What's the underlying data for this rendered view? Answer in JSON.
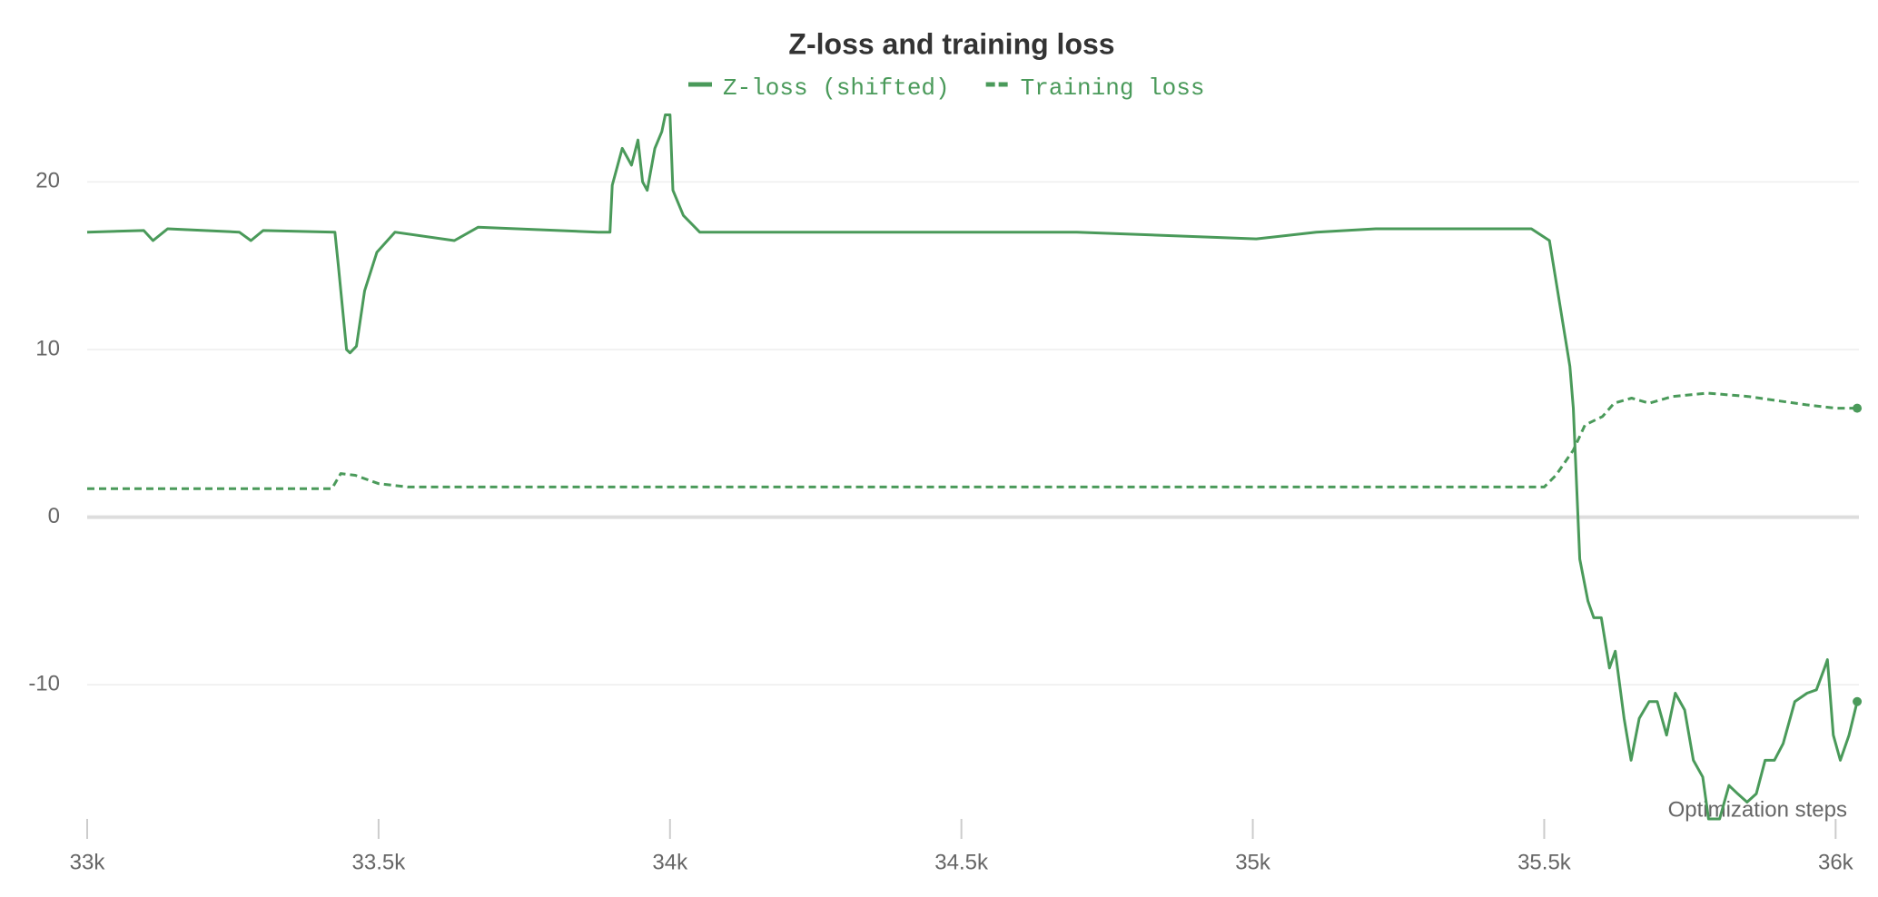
{
  "chart_data": {
    "type": "line",
    "title": "Z-loss and training loss",
    "xlabel": "Optimization steps",
    "xlim": [
      33000,
      36040
    ],
    "ylim": [
      -18,
      25
    ],
    "xticks": [
      {
        "value": 33000,
        "label": "33k"
      },
      {
        "value": 33500,
        "label": "33.5k"
      },
      {
        "value": 34000,
        "label": "34k"
      },
      {
        "value": 34500,
        "label": "34.5k"
      },
      {
        "value": 35000,
        "label": "35k"
      },
      {
        "value": 35500,
        "label": "35.5k"
      },
      {
        "value": 36000,
        "label": "36k"
      }
    ],
    "yticks": [
      -10,
      0,
      10,
      20
    ],
    "grid": true,
    "series": [
      {
        "name": "Z-loss (shifted)",
        "color": "#4a9a5a",
        "style": "solid",
        "x": [
          33000,
          33097,
          33113,
          33138,
          33261,
          33281,
          33302,
          33425,
          33431,
          33445,
          33451,
          33462,
          33476,
          33497,
          33528,
          33630,
          33671,
          33877,
          33897,
          33901,
          33918,
          33934,
          33945,
          33953,
          33961,
          33974,
          33986,
          33992,
          34000,
          34005,
          34023,
          34051,
          34287,
          34698,
          35006,
          35109,
          35211,
          35478,
          35509,
          35530,
          35544,
          35550,
          35561,
          35575,
          35585,
          35598,
          35612,
          35622,
          35637,
          35649,
          35663,
          35680,
          35694,
          35710,
          35725,
          35741,
          35756,
          35772,
          35782,
          35801,
          35817,
          35832,
          35848,
          35864,
          35879,
          35895,
          35910,
          35930,
          35951,
          35967,
          35981,
          35986,
          35996,
          36008,
          36023,
          36037
        ],
        "values": [
          17,
          17.1,
          16.5,
          17.2,
          17,
          16.5,
          17.1,
          17,
          15,
          10,
          9.8,
          10.2,
          13.5,
          15.8,
          17,
          16.5,
          17.3,
          17,
          17,
          19.8,
          22,
          21,
          22.5,
          20,
          19.5,
          22,
          23,
          24,
          24,
          19.5,
          18,
          17,
          17,
          17,
          16.6,
          17,
          17.2,
          17.2,
          16.5,
          12,
          9,
          6.5,
          -2.5,
          -5,
          -6,
          -6,
          -9,
          -8,
          -12,
          -14.5,
          -12,
          -11,
          -11,
          -13,
          -10.5,
          -11.5,
          -14.5,
          -15.5,
          -18,
          -18,
          -16,
          -16.5,
          -17,
          -16.5,
          -14.5,
          -14.5,
          -13.5,
          -11,
          -10.5,
          -10.3,
          -9,
          -8.5,
          -13,
          -14.5,
          -13,
          -11
        ]
      },
      {
        "name": "Training loss",
        "color": "#4a9a5a",
        "style": "dashed",
        "x": [
          33000,
          33420,
          33435,
          33460,
          33500,
          33550,
          35500,
          35520,
          35550,
          35570,
          35600,
          35620,
          35650,
          35680,
          35720,
          35780,
          35850,
          35950,
          36000,
          36037
        ],
        "values": [
          1.7,
          1.7,
          2.6,
          2.5,
          2.0,
          1.8,
          1.8,
          2.5,
          4,
          5.5,
          6,
          6.8,
          7.1,
          6.8,
          7.2,
          7.4,
          7.2,
          6.7,
          6.5,
          6.5
        ]
      }
    ]
  }
}
